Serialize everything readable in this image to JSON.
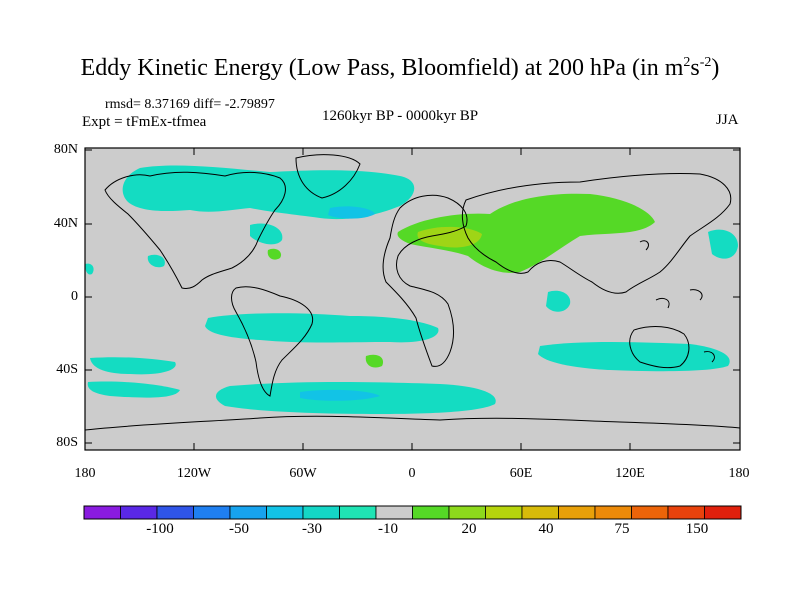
{
  "title": {
    "main": "Eddy Kinetic Energy (Low Pass, Bloomfield) at 200 hPa (in m",
    "sup1": "2",
    "mid": "s",
    "sup2": "-2",
    "end": ")"
  },
  "stats": "rmsd= 8.37169 diff= -2.79897",
  "expt": "Expt = tFmEx-tfmea",
  "period": "1260kyr BP - 0000kyr BP",
  "season": "JJA",
  "axes": {
    "y_ticks": [
      "80N",
      "40N",
      "0",
      "40S",
      "80S"
    ],
    "x_ticks": [
      "180",
      "120W",
      "60W",
      "0",
      "60E",
      "120E",
      "180"
    ]
  },
  "colorbar": {
    "colors": [
      "#8a1be0",
      "#5a28e6",
      "#2f55e8",
      "#1f7ff0",
      "#17a3ee",
      "#12c3e6",
      "#14d6c6",
      "#1fe4b4",
      "#cccccc",
      "#55d926",
      "#8dd91c",
      "#b6d40c",
      "#d7bb0a",
      "#e8a009",
      "#ec8a09",
      "#ec6409",
      "#e8420c",
      "#e0200c"
    ],
    "labels": [
      "-100",
      "-50",
      "-30",
      "-10",
      "20",
      "40",
      "75",
      "150"
    ]
  },
  "colors": {
    "ocean_land_bg": "#cccccc",
    "neg_anomaly": "#14dcc2",
    "neg_strong": "#12c3e6",
    "pos_anomaly": "#55d926",
    "pos_strong": "#9fd516"
  }
}
